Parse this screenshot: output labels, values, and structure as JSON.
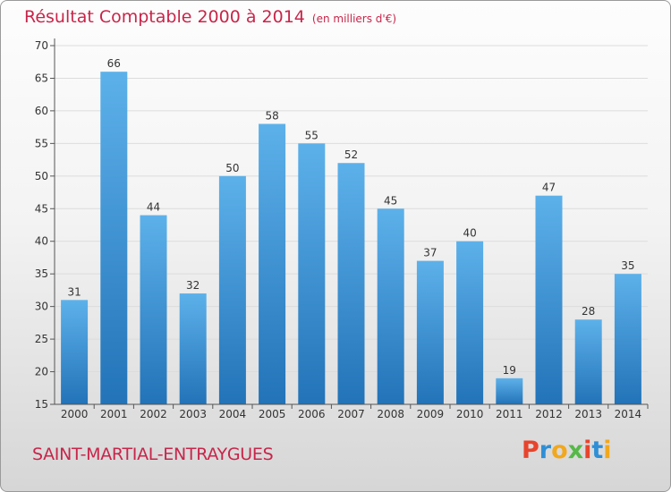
{
  "title": "Résultat Comptable 2000 à 2014",
  "title_unit": "(en milliers d'€)",
  "city": "SAINT-MARTIAL-ENTRAYGUES",
  "logo": {
    "text": "Proxiti",
    "colors": [
      "#e8442c",
      "#2f8fd6",
      "#f2a81c",
      "#56b848",
      "#e8442c",
      "#2f8fd6",
      "#f2a81c"
    ]
  },
  "colors": {
    "bar_top": "#5db1ea",
    "bar_bottom": "#2273b8",
    "title": "#c8254a",
    "axis": "#555555",
    "grid": "#dcdcdc"
  },
  "chart_data": {
    "type": "bar",
    "categories": [
      "2000",
      "2001",
      "2002",
      "2003",
      "2004",
      "2005",
      "2006",
      "2007",
      "2008",
      "2009",
      "2010",
      "2011",
      "2012",
      "2013",
      "2014"
    ],
    "values": [
      31,
      66,
      44,
      32,
      50,
      58,
      55,
      52,
      45,
      37,
      40,
      19,
      47,
      28,
      35
    ],
    "ylim": [
      15,
      70
    ],
    "yticks": [
      15,
      20,
      25,
      30,
      35,
      40,
      45,
      50,
      55,
      60,
      65,
      70
    ],
    "grid": true,
    "xlabel": "",
    "ylabel": ""
  }
}
